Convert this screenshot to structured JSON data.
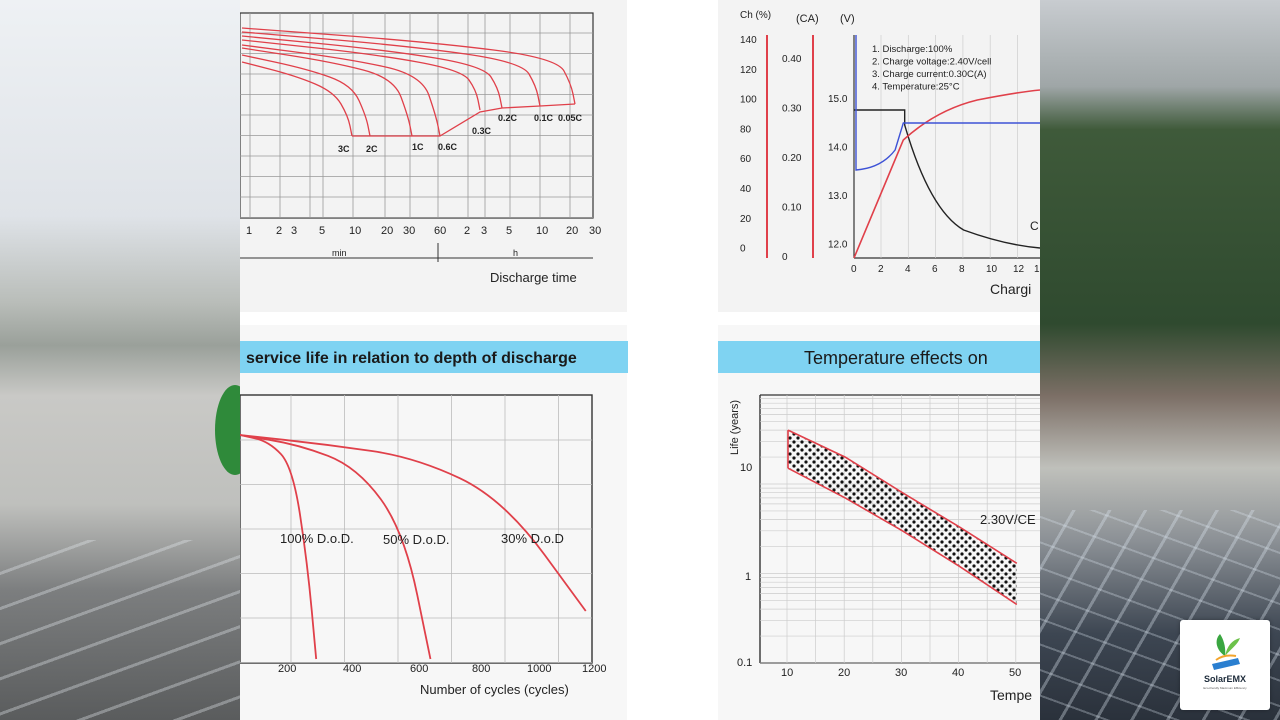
{
  "colors": {
    "curve": "#e0404a",
    "grid": "#999999",
    "header": "#7fd3f2",
    "blue": "#3d52d6",
    "black": "#222222"
  },
  "logo": {
    "name": "SolarEMX",
    "tagline": "Eco-friendly Maximum Efficiency",
    "icon": "solar-leaf-icon"
  },
  "charts": [
    {
      "id": "discharge",
      "xlabel": "Discharge time",
      "min_label": "min",
      "h_label": "h",
      "x_ticks": [
        "1",
        "2",
        "3",
        "5",
        "10",
        "20",
        "30",
        "60",
        "2",
        "3",
        "5",
        "10",
        "20",
        "30"
      ],
      "curve_labels": [
        "3C",
        "2C",
        "1C",
        "0.6C",
        "0.3C",
        "0.2C",
        "0.1C",
        "0.05C"
      ]
    },
    {
      "id": "charge",
      "axis_titles": [
        "Ch (%)",
        "(CA)",
        "(V)"
      ],
      "left_ticks": [
        "140",
        "120",
        "100",
        "80",
        "60",
        "40",
        "20",
        "0"
      ],
      "ca_ticks": [
        "0.40",
        "0.30",
        "0.20",
        "0.10",
        "0"
      ],
      "v_ticks": [
        "15.0",
        "14.0",
        "13.0",
        "12.0"
      ],
      "x_ticks": [
        "0",
        "2",
        "4",
        "6",
        "8",
        "10",
        "12",
        "1"
      ],
      "xlabel": "Chargi",
      "legend": [
        "1. Discharge:100%",
        "2. Charge voltage:2.40V/cell",
        "3. Charge current:0.30C(A)",
        "4. Temperature:25°C"
      ],
      "side_label": "C"
    },
    {
      "id": "cycles",
      "title": "service life in relation to depth of discharge",
      "xlabel": "Number of cycles (cycles)",
      "x_ticks": [
        "200",
        "400",
        "600",
        "800",
        "1000",
        "1200"
      ],
      "curve_labels": [
        "100% D.o.D.",
        "50% D.o.D.",
        "30% D.o.D"
      ]
    },
    {
      "id": "temperature",
      "title": "Temperature effects on",
      "ylabel": "Life (years)",
      "y_ticks": [
        "10",
        "1",
        "0.1"
      ],
      "x_ticks": [
        "10",
        "20",
        "30",
        "40",
        "50"
      ],
      "xlabel": "Tempe",
      "band_label": "2.30V/CE"
    }
  ],
  "chart_data": [
    {
      "type": "line",
      "title": "",
      "xlabel": "Discharge time",
      "ylabel": "",
      "x_scale": "log",
      "x_ticks": [
        "1",
        "2",
        "3",
        "5",
        "10",
        "20",
        "30",
        "60",
        "2",
        "3",
        "5",
        "10",
        "20",
        "30"
      ],
      "series": [
        {
          "name": "3C",
          "end_time": "≈8 min"
        },
        {
          "name": "2C",
          "end_time": "≈15 min"
        },
        {
          "name": "1C",
          "end_time": "≈40 min"
        },
        {
          "name": "0.6C",
          "end_time": "≈70 min"
        },
        {
          "name": "0.3C",
          "end_time": "≈3 h"
        },
        {
          "name": "0.2C",
          "end_time": "≈5 h"
        },
        {
          "name": "0.1C",
          "end_time": "≈10 h"
        },
        {
          "name": "0.05C",
          "end_time": "≈20 h"
        }
      ]
    },
    {
      "type": "line",
      "title": "",
      "xlabel": "Chargi",
      "x": [
        0,
        2,
        3.5,
        4,
        6,
        8,
        10,
        12,
        13
      ],
      "series": [
        {
          "name": "",
          "unit": "V",
          "values": [
            14.8,
            14.8,
            14.8,
            14.5,
            13.3,
            12.6,
            12.3,
            12.15,
            12.1
          ]
        },
        {
          "name": "",
          "unit": "%",
          "values": [
            0,
            50,
            78,
            85,
            102,
            110,
            118,
            123,
            126
          ]
        },
        {
          "name": "",
          "unit": "CA",
          "values": [
            0.3,
            0.3,
            0.3,
            0.27,
            0.13,
            0.06,
            0.03,
            0.02,
            0.02
          ]
        }
      ]
    },
    {
      "type": "line",
      "title": "service life in relation to depth of discharge",
      "xlabel": "Number of cycles (cycles)",
      "x_ticks": [
        200,
        400,
        600,
        800,
        1000,
        1200
      ],
      "series": [
        {
          "name": "100% D.o.D.",
          "x": [
            0,
            100,
            180,
            230,
            260
          ],
          "y": [
            100,
            98,
            90,
            60,
            30
          ]
        },
        {
          "name": "50% D.o.D.",
          "x": [
            0,
            200,
            400,
            560,
            650
          ],
          "y": [
            100,
            97,
            90,
            70,
            30
          ]
        },
        {
          "name": "30% D.o.D",
          "x": [
            0,
            300,
            600,
            900,
            1180
          ],
          "y": [
            100,
            97,
            93,
            80,
            45
          ]
        }
      ]
    },
    {
      "type": "area",
      "title": "Temperature effects on",
      "xlabel": "Tempe",
      "ylabel": "Life (years)",
      "y_scale": "log",
      "ylim": [
        0.1,
        100
      ],
      "x_ticks": [
        10,
        20,
        30,
        40,
        50
      ],
      "series": [
        {
          "name": "2.30V/CE upper",
          "x": [
            10,
            20,
            30,
            40,
            50
          ],
          "values": [
            40,
            20,
            8,
            3.3,
            1.3
          ]
        },
        {
          "name": "2.30V/CE lower",
          "x": [
            10,
            20,
            30,
            40,
            50
          ],
          "values": [
            15,
            7,
            3,
            1.2,
            0.45
          ]
        }
      ]
    }
  ]
}
